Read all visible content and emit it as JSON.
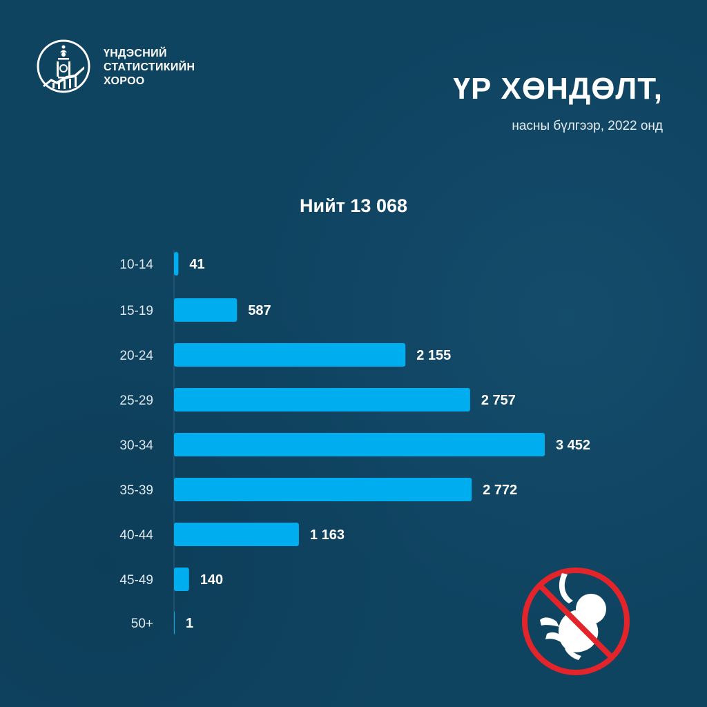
{
  "header": {
    "org_line1": "ҮНДЭСНИЙ",
    "org_line2": "СТАТИСТИКИЙН",
    "org_line3": "ХОРОО",
    "title": "ҮР ХӨНДӨЛТ,",
    "subtitle": "насны бүлгээр, 2022 онд",
    "total": "Нийт 13 068"
  },
  "colors": {
    "background": "#0f4461",
    "bar": "#00aeef",
    "icon_red": "#e3242b"
  },
  "icons": {
    "logo": "soyombo-logo-icon",
    "illustration": "no-abortion-fetus-icon"
  },
  "chart_data": {
    "type": "bar",
    "orientation": "horizontal",
    "categories": [
      "10-14",
      "15-19",
      "20-24",
      "25-29",
      "30-34",
      "35-39",
      "40-44",
      "45-49",
      "50+"
    ],
    "values": [
      41,
      587,
      2155,
      2757,
      3452,
      2772,
      1163,
      140,
      1
    ],
    "value_labels": [
      "41",
      "587",
      "2 155",
      "2 757",
      "3 452",
      "2 772",
      "1 163",
      "140",
      "1"
    ],
    "xlim": [
      0,
      3452
    ],
    "grid": false,
    "legend": "none"
  }
}
